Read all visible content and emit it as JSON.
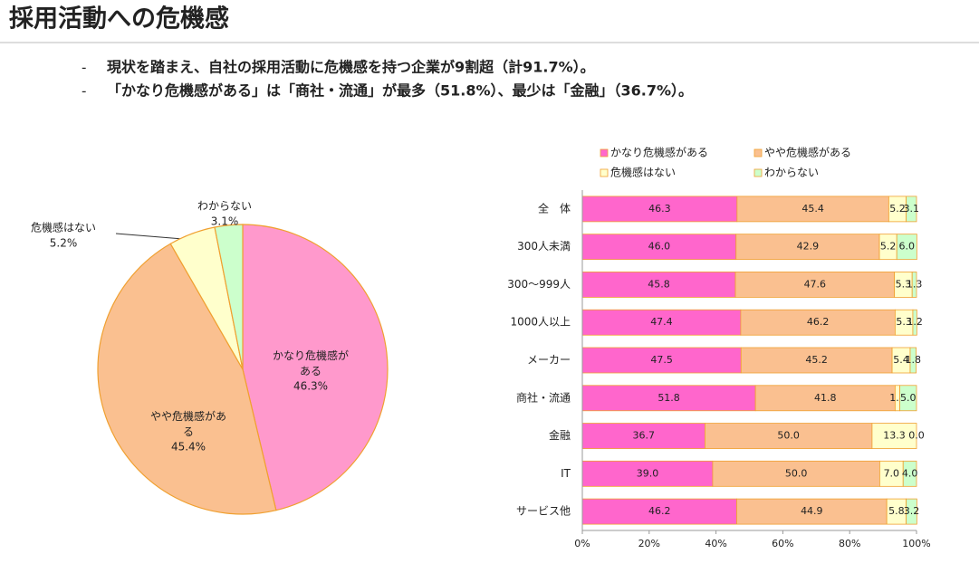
{
  "header": {
    "title": "採用活動への危機感",
    "bullets": [
      "現状を踏まえ、自社の採用活動に危機感を持つ企業が9割超（計91.7%）。",
      "「かなり危機感がある」は「商社・流通」が最多（51.8%）、最少は「金融」（36.7%）。"
    ]
  },
  "chart_data": [
    {
      "type": "pie",
      "categories": [
        "かなり危機感がある",
        "やや危機感がある",
        "危機感はない",
        "わからない"
      ],
      "values": [
        46.3,
        45.4,
        5.2,
        3.1
      ],
      "value_labels": [
        "46.3%",
        "45.4%",
        "5.2%",
        "3.1%"
      ],
      "colors": [
        "#ff99cc",
        "#fac090",
        "#ffffcc",
        "#ccffcc"
      ]
    },
    {
      "type": "stacked-bar",
      "categories": [
        "全　体",
        "300人未満",
        "300～999人",
        "1000人以上",
        "メーカー",
        "商社・流通",
        "金融",
        "IT",
        "サービス他"
      ],
      "series": [
        {
          "name": "かなり危機感がある",
          "color": "#ff66cc",
          "values": [
            46.3,
            46.0,
            45.8,
            47.4,
            47.5,
            51.8,
            36.7,
            39.0,
            46.2
          ],
          "value_labels": [
            "46.3",
            "46.0",
            "45.8",
            "47.4",
            "47.5",
            "51.8",
            "36.7",
            "39.0",
            "46.2"
          ]
        },
        {
          "name": "やや危機感がある",
          "color": "#fac090",
          "values": [
            45.4,
            42.9,
            47.6,
            46.2,
            45.2,
            41.8,
            50.0,
            50.0,
            44.9
          ],
          "value_labels": [
            "45.4",
            "42.9",
            "47.6",
            "46.2",
            "45.2",
            "41.8",
            "50.0",
            "50.0",
            "44.9"
          ]
        },
        {
          "name": "危機感はない",
          "color": "#ffffcc",
          "values": [
            5.2,
            5.2,
            5.3,
            5.3,
            5.4,
            1.4,
            13.3,
            7.0,
            5.8
          ],
          "value_labels": [
            "5.2",
            "5.2",
            "5.3",
            "5.3",
            "5.4",
            "1.4",
            "13.3",
            "7.0",
            "5.8"
          ]
        },
        {
          "name": "わからない",
          "color": "#ccffcc",
          "values": [
            3.1,
            6.0,
            1.3,
            1.2,
            1.8,
            5.0,
            0.0,
            4.0,
            3.2
          ],
          "value_labels": [
            "3.1",
            "6.0",
            "1.3",
            "1.2",
            "1.8",
            "5.0",
            "0.0",
            "4.0",
            "3.2"
          ]
        }
      ],
      "xlim": [
        0,
        100
      ],
      "xticks": [
        {
          "value": 0,
          "label": "0%"
        },
        {
          "value": 20,
          "label": "20%"
        },
        {
          "value": 40,
          "label": "40%"
        },
        {
          "value": 60,
          "label": "60%"
        },
        {
          "value": 80,
          "label": "80%"
        },
        {
          "value": 100,
          "label": "100%"
        }
      ]
    }
  ]
}
